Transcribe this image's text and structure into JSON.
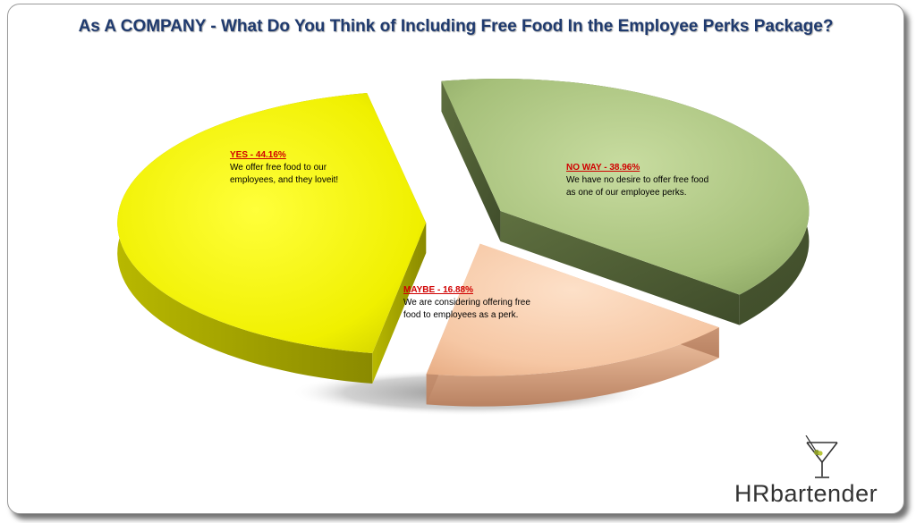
{
  "title": "As A COMPANY - What Do You Think of Including Free Food In the Employee Perks Package?",
  "chart_data": {
    "type": "pie",
    "title": "As A COMPANY - What Do You Think of Including Free Food In the Employee Perks Package?",
    "slices": [
      {
        "label": "YES - 44.16%",
        "value": 44.16,
        "description": "We offer free food to our employees, and they loveit!",
        "color": "#f2f200"
      },
      {
        "label": "NO WAY - 38.96%",
        "value": 38.96,
        "description": "We have no desire to offer free food as one of our employee perks.",
        "color": "#a9c47f"
      },
      {
        "label": "MAYBE - 16.88%",
        "value": 16.88,
        "description": "We are considering offering free food to employees  as a perk.",
        "color": "#f6c9a8"
      }
    ],
    "style": "3d-exploded",
    "legend": "none"
  },
  "logo": {
    "text_bold": "HR",
    "text_rest": "bartender"
  }
}
